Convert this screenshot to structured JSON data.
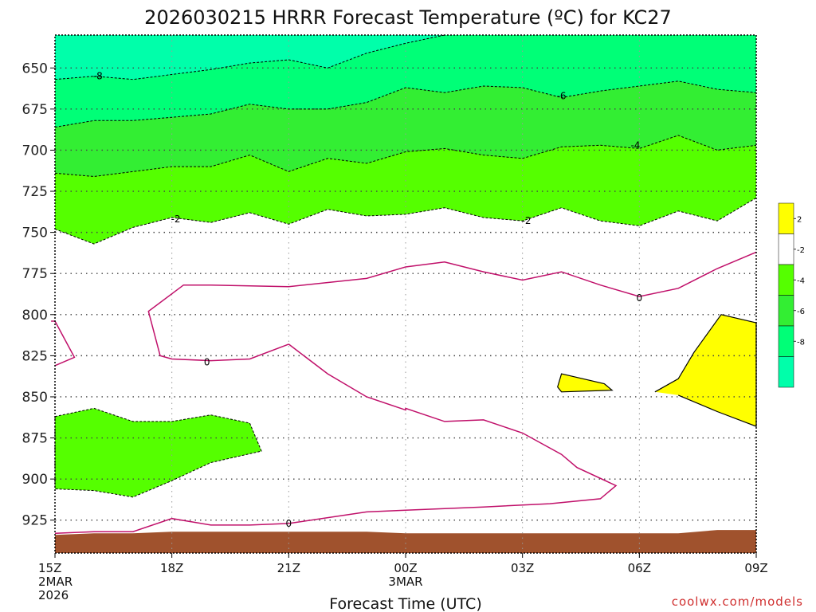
{
  "chart_data": {
    "type": "contour",
    "title": "2026030215 HRRR Forecast Temperature (ºC) for KC27",
    "xlabel": "Forecast Time (UTC)",
    "ylabel": "",
    "y_axis": "pressure (hPa), inverted",
    "ylim": [
      945,
      630
    ],
    "xlim": [
      0,
      18
    ],
    "y_ticks": [
      650,
      675,
      700,
      725,
      750,
      775,
      800,
      825,
      850,
      875,
      900,
      925
    ],
    "x_ticks": [
      {
        "x": 0,
        "lines": [
          "15Z",
          "2MAR",
          "2026"
        ]
      },
      {
        "x": 3,
        "lines": [
          "18Z"
        ]
      },
      {
        "x": 6,
        "lines": [
          "21Z"
        ]
      },
      {
        "x": 9,
        "lines": [
          "00Z",
          "3MAR"
        ]
      },
      {
        "x": 12,
        "lines": [
          "03Z"
        ]
      },
      {
        "x": 15,
        "lines": [
          "06Z"
        ]
      },
      {
        "x": 18,
        "lines": [
          "09Z"
        ]
      }
    ],
    "grid": true,
    "credit": "coolwx.com/models",
    "legend": {
      "placement": "right",
      "levels": [
        {
          "label": "2",
          "color": "#ffff00"
        },
        {
          "label": "-2",
          "color": "#ffffff"
        },
        {
          "label": "-4",
          "color": "#55ff00"
        },
        {
          "label": "-6",
          "color": "#33ee33"
        },
        {
          "label": "-8",
          "color": "#00ff77"
        },
        {
          "label": "",
          "color": "#00ffaa"
        }
      ]
    },
    "fill_colors": {
      "lt_m8": "#00ffaa",
      "m8_m6": "#00ff77",
      "m6_m4": "#33ee33",
      "m4_m2": "#55ff00",
      "gt_2": "#ffff00",
      "ground": "#a0522d"
    },
    "contours": {
      "m8": {
        "label": "-8",
        "points": [
          [
            0,
            657
          ],
          [
            1,
            655
          ],
          [
            2,
            657
          ],
          [
            3,
            654
          ],
          [
            4,
            651
          ],
          [
            5,
            647
          ],
          [
            6,
            645
          ],
          [
            7,
            650
          ],
          [
            8,
            641
          ],
          [
            9,
            635
          ],
          [
            10,
            630
          ]
        ]
      },
      "m6": {
        "label": "-6",
        "points": [
          [
            0,
            686
          ],
          [
            1,
            682
          ],
          [
            2,
            682
          ],
          [
            3,
            680
          ],
          [
            4,
            678
          ],
          [
            5,
            672
          ],
          [
            6,
            675
          ],
          [
            7,
            675
          ],
          [
            8,
            671
          ],
          [
            9,
            662
          ],
          [
            10,
            665
          ],
          [
            11,
            661
          ],
          [
            12,
            662
          ],
          [
            13,
            668
          ],
          [
            14,
            664
          ],
          [
            15,
            661
          ],
          [
            16,
            658
          ],
          [
            17,
            663
          ],
          [
            18,
            665
          ]
        ]
      },
      "m4": {
        "label": "-4",
        "points": [
          [
            0,
            714
          ],
          [
            1,
            716
          ],
          [
            2,
            713
          ],
          [
            3,
            710
          ],
          [
            4,
            710
          ],
          [
            5,
            703
          ],
          [
            6,
            713
          ],
          [
            7,
            705
          ],
          [
            8,
            708
          ],
          [
            9,
            701
          ],
          [
            10,
            699
          ],
          [
            11,
            703
          ],
          [
            12,
            705
          ],
          [
            13,
            698
          ],
          [
            14,
            697
          ],
          [
            15,
            699
          ],
          [
            16,
            691
          ],
          [
            17,
            700
          ],
          [
            18,
            697
          ]
        ]
      },
      "m2": {
        "label": "-2",
        "points": [
          [
            0,
            748
          ],
          [
            1,
            757
          ],
          [
            2,
            747
          ],
          [
            3,
            741
          ],
          [
            4,
            744
          ],
          [
            5,
            738
          ],
          [
            6,
            745
          ],
          [
            7,
            736
          ],
          [
            8,
            740
          ],
          [
            9,
            739
          ],
          [
            10,
            735
          ],
          [
            11,
            741
          ],
          [
            12,
            743
          ],
          [
            13,
            735
          ],
          [
            14,
            743
          ],
          [
            15,
            746
          ],
          [
            16,
            737
          ],
          [
            17,
            743
          ],
          [
            18,
            729
          ]
        ]
      },
      "m2_low": {
        "label": "",
        "points": [
          [
            0,
            862
          ],
          [
            1,
            857
          ],
          [
            2,
            865
          ],
          [
            3,
            865
          ],
          [
            4,
            861
          ],
          [
            5,
            866
          ],
          [
            5.3,
            883
          ],
          [
            4,
            890
          ],
          [
            3,
            901
          ],
          [
            2,
            911
          ],
          [
            1,
            907
          ],
          [
            0,
            906
          ]
        ]
      },
      "zero_main": {
        "label": "0",
        "points": [
          [
            0,
            831
          ],
          [
            0.5,
            826
          ],
          [
            0,
            804
          ],
          [
            -0.1,
            804
          ]
        ]
      },
      "zero_loop": {
        "label": "0",
        "points": [
          [
            6,
            818
          ],
          [
            5,
            827
          ],
          [
            4,
            828
          ],
          [
            3,
            827
          ],
          [
            2.7,
            825
          ],
          [
            2.4,
            798
          ],
          [
            3.3,
            782
          ],
          [
            4,
            782
          ],
          [
            6,
            783
          ],
          [
            8,
            778
          ],
          [
            9,
            771
          ],
          [
            10,
            768
          ],
          [
            11,
            774
          ],
          [
            12,
            779
          ],
          [
            13,
            774
          ],
          [
            14,
            782
          ],
          [
            15,
            789
          ],
          [
            16,
            784
          ],
          [
            17,
            772
          ],
          [
            18,
            762
          ]
        ]
      },
      "zero_lower": {
        "label": "",
        "points": [
          [
            6,
            818
          ],
          [
            7,
            836
          ],
          [
            8,
            850
          ],
          [
            9,
            858
          ],
          [
            9,
            857
          ],
          [
            10,
            865
          ],
          [
            11,
            864
          ],
          [
            12,
            872
          ],
          [
            13,
            885
          ],
          [
            13.4,
            893
          ],
          [
            14.4,
            904
          ],
          [
            14,
            912
          ],
          [
            12.7,
            915
          ],
          [
            11,
            917
          ],
          [
            9,
            919
          ],
          [
            8,
            920
          ],
          [
            6,
            927
          ],
          [
            5,
            928
          ],
          [
            4,
            928
          ],
          [
            3,
            924
          ],
          [
            2,
            932
          ],
          [
            1,
            932
          ],
          [
            0,
            933
          ]
        ]
      },
      "pos2_blob1": {
        "label": "",
        "points": [
          [
            13.0,
            836
          ],
          [
            14.1,
            842
          ],
          [
            14.3,
            846
          ],
          [
            13.0,
            847
          ],
          [
            12.9,
            844
          ]
        ]
      },
      "pos2_blob2": {
        "label": "",
        "points": [
          [
            15.4,
            847
          ],
          [
            16.0,
            839
          ],
          [
            16.4,
            823
          ],
          [
            17.1,
            800
          ],
          [
            18,
            805
          ],
          [
            18,
            868
          ],
          [
            17,
            859
          ],
          [
            16,
            849
          ]
        ]
      }
    },
    "contour_labels": [
      {
        "text": "-8",
        "x": 1.1,
        "y": 655
      },
      {
        "text": "-6",
        "x": 13.0,
        "y": 667
      },
      {
        "text": "-4",
        "x": 14.9,
        "y": 697
      },
      {
        "text": "-2",
        "x": 3.1,
        "y": 742
      },
      {
        "text": "-2",
        "x": 12.1,
        "y": 743
      },
      {
        "text": "0",
        "x": 15.0,
        "y": 790
      },
      {
        "text": "0",
        "x": 3.9,
        "y": 829
      },
      {
        "text": "0",
        "x": 6.0,
        "y": 927
      }
    ],
    "ground_top": [
      [
        0,
        934
      ],
      [
        1,
        933
      ],
      [
        2,
        933
      ],
      [
        3,
        932
      ],
      [
        4,
        932
      ],
      [
        5,
        932
      ],
      [
        6,
        932
      ],
      [
        7,
        932
      ],
      [
        8,
        932
      ],
      [
        9,
        933
      ],
      [
        10,
        933
      ],
      [
        11,
        933
      ],
      [
        12,
        933
      ],
      [
        13,
        933
      ],
      [
        14,
        933
      ],
      [
        15,
        933
      ],
      [
        16,
        933
      ],
      [
        17,
        931
      ],
      [
        18,
        931
      ]
    ]
  }
}
